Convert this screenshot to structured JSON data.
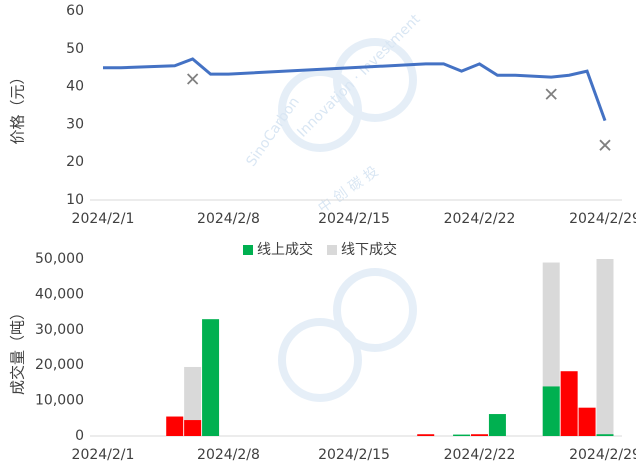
{
  "watermark": [
    "SinoCarbon",
    "Innovation · Investment",
    "中 创 碳 投"
  ],
  "chart_data": [
    {
      "type": "line",
      "ylabel": "价格（元）",
      "xlim": [
        "2024/2/1",
        "2024/2/29"
      ],
      "xticks": [
        "2024/2/1",
        "2024/2/8",
        "2024/2/15",
        "2024/2/22",
        "2024/2/29"
      ],
      "ylim": [
        10,
        60
      ],
      "yticks": [
        10,
        20,
        30,
        40,
        50,
        60
      ],
      "grid": false,
      "series": [
        {
          "type": "line",
          "color": "#4472c4",
          "x": [
            "2024/2/1",
            "2024/2/2",
            "2024/2/5",
            "2024/2/6",
            "2024/2/7",
            "2024/2/8",
            "2024/2/19",
            "2024/2/20",
            "2024/2/21",
            "2024/2/22",
            "2024/2/23",
            "2024/2/24",
            "2024/2/26",
            "2024/2/27",
            "2024/2/28",
            "2024/2/29"
          ],
          "values": [
            45,
            45,
            45.5,
            47.3,
            43.3,
            43.3,
            46,
            46,
            44.1,
            46,
            43,
            43,
            42.5,
            43,
            44.1,
            31
          ]
        },
        {
          "type": "scatter",
          "color": "#808080",
          "x": [
            "2024/2/6",
            "2024/2/26",
            "2024/2/29"
          ],
          "values": [
            42,
            38,
            24.5
          ]
        }
      ]
    },
    {
      "type": "bar",
      "ylabel": "成交量（吨）",
      "xlim": [
        "2024/2/1",
        "2024/2/29"
      ],
      "xticks": [
        "2024/2/1",
        "2024/2/8",
        "2024/2/15",
        "2024/2/22",
        "2024/2/29"
      ],
      "ylim": [
        0,
        50000
      ],
      "yticks": [
        0,
        {
          "value": 10000,
          "label": "10,000"
        },
        {
          "value": 20000,
          "label": "20,000"
        },
        {
          "value": 30000,
          "label": "30,000"
        },
        {
          "value": 40000,
          "label": "40,000"
        },
        {
          "value": 50000,
          "label": "50,000"
        }
      ],
      "grid": false,
      "legend": "top",
      "x": [
        "2024/2/5",
        "2024/2/6",
        "2024/2/7",
        "2024/2/19",
        "2024/2/21",
        "2024/2/22",
        "2024/2/23",
        "2024/2/26",
        "2024/2/27",
        "2024/2/28",
        "2024/2/29"
      ],
      "series": [
        {
          "name": "线下成交",
          "color": "#d9d9d9",
          "values": [
            null,
            19500,
            null,
            null,
            null,
            null,
            null,
            49000,
            null,
            null,
            50000
          ]
        },
        {
          "name": "线上成交",
          "color": "#00b050",
          "values": [
            null,
            null,
            33000,
            null,
            400,
            null,
            6200,
            14000,
            null,
            null,
            500
          ]
        },
        {
          "color": "#ff0000",
          "values": [
            5500,
            4500,
            null,
            500,
            null,
            500,
            null,
            null,
            18300,
            8000,
            null
          ]
        }
      ]
    }
  ]
}
